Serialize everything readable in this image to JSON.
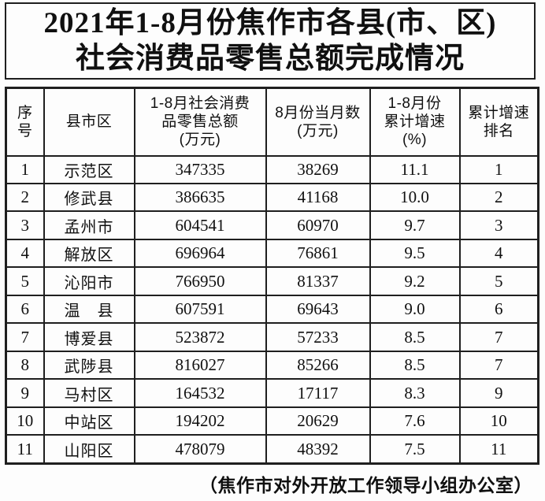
{
  "title": {
    "text": "2021年1-8月份焦作市各县(市、区)\n社会消费品零售总额完成情况"
  },
  "table": {
    "headers": [
      "序\n号",
      "县市区",
      "1-8月社会消费\n品零售总额\n(万元)",
      "8月份当月数\n(万元)",
      "1-8月份\n累计增速\n(%)",
      "累计增速\n排名"
    ],
    "rows": [
      [
        "1",
        "示范区",
        "347335",
        "38269",
        "11.1",
        "1"
      ],
      [
        "2",
        "修武县",
        "386635",
        "41168",
        "10.0",
        "2"
      ],
      [
        "3",
        "孟州市",
        "604541",
        "60970",
        "9.7",
        "3"
      ],
      [
        "4",
        "解放区",
        "696964",
        "76861",
        "9.5",
        "4"
      ],
      [
        "5",
        "沁阳市",
        "766950",
        "81337",
        "9.2",
        "5"
      ],
      [
        "6",
        "温　县",
        "607591",
        "69643",
        "9.0",
        "6"
      ],
      [
        "7",
        "博爱县",
        "523872",
        "57233",
        "8.5",
        "7"
      ],
      [
        "8",
        "武陟县",
        "816027",
        "85266",
        "8.5",
        "7"
      ],
      [
        "9",
        "马村区",
        "164532",
        "17117",
        "8.3",
        "9"
      ],
      [
        "10",
        "中站区",
        "194202",
        "20629",
        "7.6",
        "10"
      ],
      [
        "11",
        "山阳区",
        "478079",
        "48392",
        "7.5",
        "11"
      ]
    ]
  },
  "footer": {
    "text": "（焦作市对外开放工作领导小组办公室）"
  },
  "colors": {
    "border": "#1f1f1f",
    "text": "#101010",
    "background": "#fdfdfd"
  }
}
